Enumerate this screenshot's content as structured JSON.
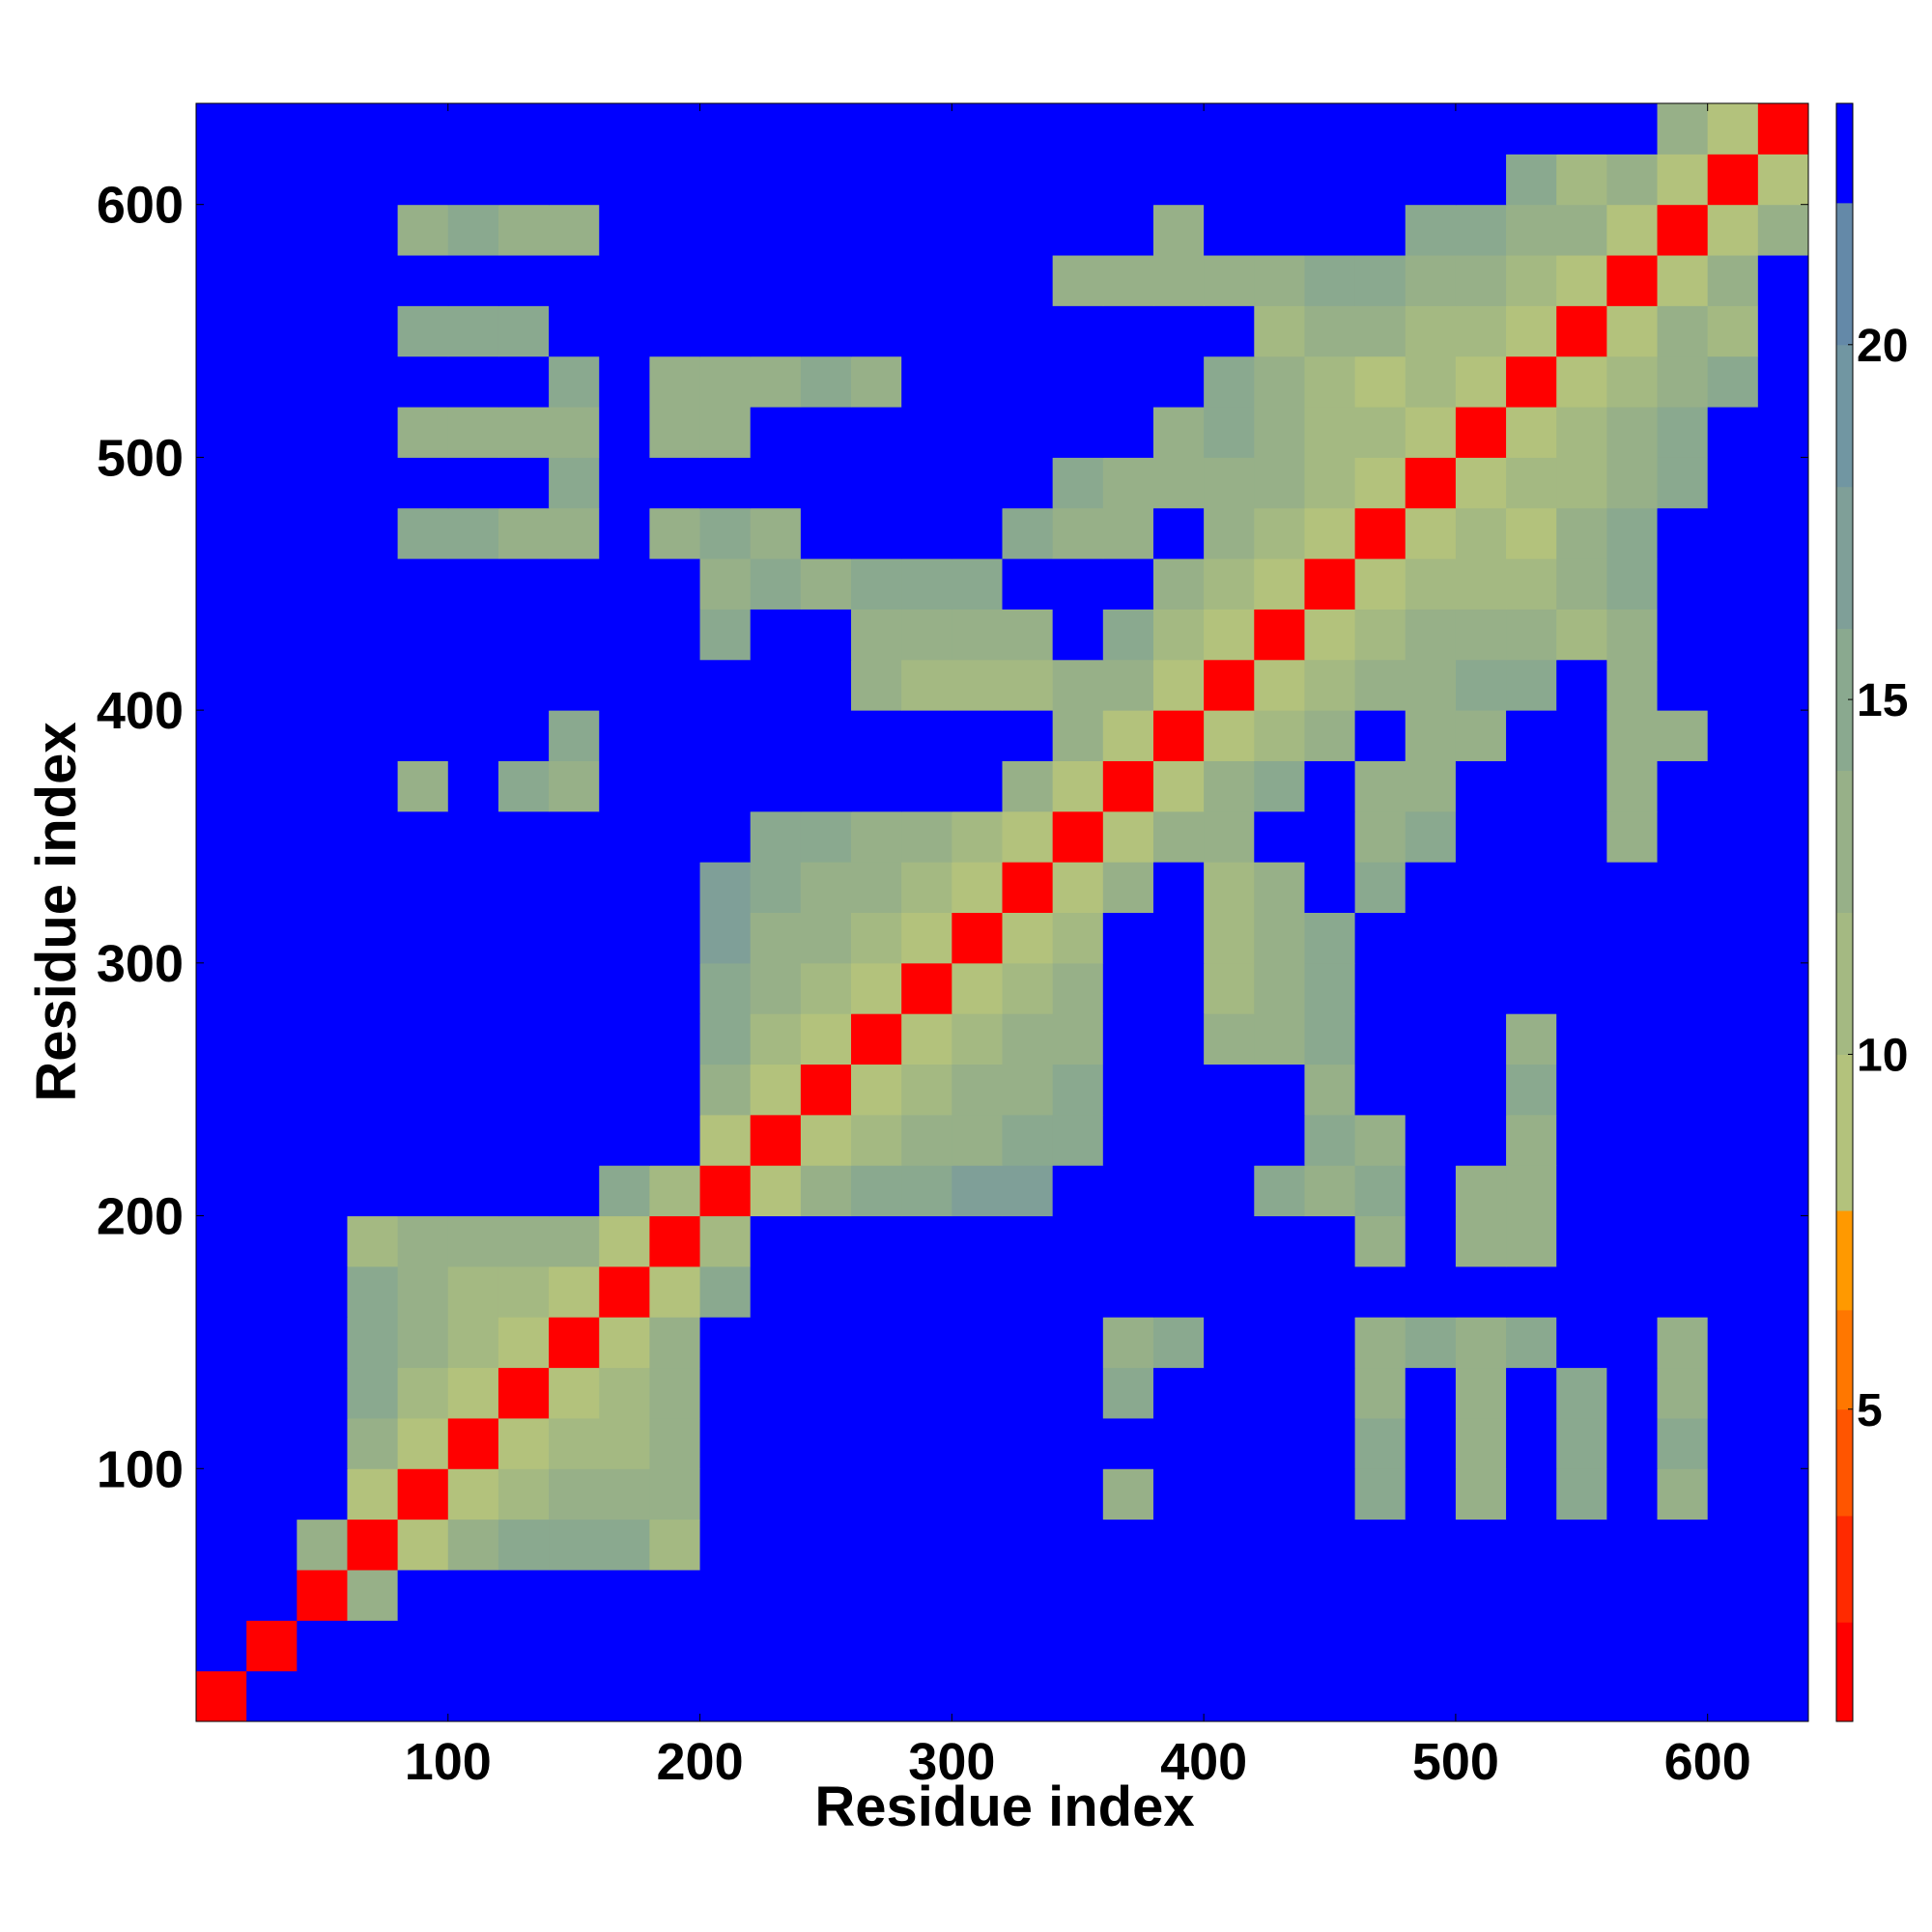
{
  "chart_data": {
    "type": "heatmap",
    "xlabel": "Residue index",
    "ylabel": "Residue index",
    "bins": [
      0,
      20,
      40,
      60,
      80,
      100,
      120,
      140,
      160,
      180,
      200,
      220,
      240,
      260,
      280,
      300,
      320,
      340,
      360,
      380,
      400,
      420,
      440,
      460,
      480,
      500,
      520,
      540,
      560,
      580,
      600,
      620,
      640
    ],
    "xlim": [
      0,
      640
    ],
    "ylim": [
      0,
      640
    ],
    "xticks": [
      100,
      200,
      300,
      400,
      500,
      600
    ],
    "yticks": [
      100,
      200,
      300,
      400,
      500,
      600
    ],
    "z": [
      [
        1,
        23,
        23,
        23,
        23,
        23,
        23,
        23,
        23,
        23,
        23,
        23,
        23,
        23,
        23,
        23,
        23,
        23,
        23,
        23,
        23,
        23,
        23,
        23,
        23,
        23,
        23,
        23,
        23,
        23,
        23,
        23
      ],
      [
        23,
        1,
        23,
        23,
        23,
        23,
        23,
        23,
        23,
        23,
        23,
        23,
        23,
        23,
        23,
        23,
        23,
        23,
        23,
        23,
        23,
        23,
        23,
        23,
        23,
        23,
        23,
        23,
        23,
        23,
        23,
        23
      ],
      [
        23,
        23,
        1,
        14,
        23,
        23,
        23,
        23,
        23,
        23,
        23,
        23,
        23,
        23,
        23,
        23,
        23,
        23,
        23,
        23,
        23,
        23,
        23,
        23,
        23,
        23,
        23,
        23,
        23,
        23,
        23,
        23
      ],
      [
        23,
        23,
        14,
        1,
        10,
        14,
        15,
        15,
        16,
        12,
        23,
        23,
        23,
        23,
        23,
        23,
        23,
        23,
        23,
        23,
        23,
        23,
        23,
        23,
        23,
        23,
        23,
        23,
        23,
        23,
        23,
        23
      ],
      [
        23,
        23,
        23,
        10,
        1,
        10,
        12,
        13,
        14,
        13,
        23,
        23,
        23,
        23,
        23,
        23,
        23,
        23,
        14,
        23,
        23,
        23,
        23,
        15,
        23,
        14,
        23,
        16,
        23,
        14,
        23,
        23
      ],
      [
        23,
        23,
        23,
        14,
        10,
        1,
        8,
        12,
        12,
        13,
        23,
        23,
        23,
        23,
        23,
        23,
        23,
        23,
        23,
        23,
        23,
        23,
        23,
        16,
        23,
        14,
        23,
        16,
        23,
        16,
        23,
        23
      ],
      [
        23,
        23,
        23,
        15,
        12,
        8,
        1,
        9,
        12,
        14,
        23,
        23,
        23,
        23,
        23,
        23,
        23,
        23,
        16,
        23,
        23,
        23,
        23,
        13,
        23,
        13,
        23,
        15,
        23,
        14,
        23,
        23
      ],
      [
        23,
        23,
        23,
        15,
        13,
        12,
        9,
        1,
        8,
        13,
        23,
        23,
        23,
        23,
        23,
        23,
        23,
        23,
        13,
        16,
        23,
        23,
        23,
        14,
        15,
        14,
        16,
        23,
        23,
        13,
        23,
        23
      ],
      [
        23,
        23,
        23,
        16,
        14,
        12,
        12,
        8,
        1,
        10,
        16,
        23,
        23,
        23,
        23,
        23,
        23,
        23,
        23,
        23,
        23,
        23,
        23,
        23,
        23,
        23,
        23,
        23,
        23,
        23,
        23,
        23
      ],
      [
        23,
        23,
        23,
        12,
        13,
        13,
        14,
        13,
        10,
        1,
        12,
        23,
        23,
        23,
        23,
        23,
        23,
        23,
        23,
        23,
        23,
        23,
        23,
        13,
        23,
        14,
        13,
        23,
        23,
        23,
        23,
        23
      ],
      [
        23,
        23,
        23,
        23,
        23,
        23,
        23,
        23,
        16,
        12,
        1,
        10,
        13,
        15,
        15,
        17,
        18,
        23,
        23,
        23,
        23,
        15,
        14,
        16,
        23,
        14,
        13,
        23,
        23,
        23,
        23,
        23
      ],
      [
        23,
        23,
        23,
        23,
        23,
        23,
        23,
        23,
        23,
        23,
        10,
        1,
        9,
        12,
        13,
        14,
        15,
        16,
        23,
        23,
        23,
        23,
        15,
        14,
        23,
        23,
        14,
        23,
        23,
        23,
        23,
        23
      ],
      [
        23,
        23,
        23,
        23,
        23,
        23,
        23,
        23,
        23,
        23,
        13,
        9,
        1,
        9,
        12,
        13,
        13,
        15,
        23,
        23,
        23,
        23,
        13,
        23,
        23,
        23,
        15,
        23,
        23,
        23,
        23,
        23
      ],
      [
        23,
        23,
        23,
        23,
        23,
        23,
        23,
        23,
        23,
        23,
        15,
        12,
        9,
        1,
        8,
        12,
        13,
        14,
        23,
        23,
        13,
        13,
        15,
        23,
        23,
        23,
        14,
        23,
        23,
        23,
        23,
        23
      ],
      [
        23,
        23,
        23,
        23,
        23,
        23,
        23,
        23,
        23,
        23,
        15,
        13,
        12,
        8,
        1,
        9,
        12,
        13,
        23,
        23,
        12,
        13,
        16,
        23,
        23,
        23,
        23,
        23,
        23,
        23,
        23,
        23
      ],
      [
        23,
        23,
        23,
        23,
        23,
        23,
        23,
        23,
        23,
        23,
        17,
        14,
        13,
        12,
        9,
        1,
        9,
        12,
        23,
        23,
        11,
        14,
        16,
        23,
        23,
        23,
        23,
        23,
        23,
        23,
        23,
        23
      ],
      [
        23,
        23,
        23,
        23,
        23,
        23,
        23,
        23,
        23,
        23,
        18,
        15,
        13,
        13,
        12,
        9,
        1,
        9,
        13,
        23,
        12,
        14,
        23,
        16,
        23,
        23,
        23,
        23,
        23,
        23,
        23,
        23
      ],
      [
        23,
        23,
        23,
        23,
        23,
        23,
        23,
        23,
        23,
        23,
        23,
        16,
        15,
        14,
        13,
        12,
        9,
        1,
        9,
        14,
        13,
        23,
        23,
        14,
        15,
        23,
        23,
        23,
        14,
        23,
        23,
        23
      ],
      [
        23,
        23,
        23,
        23,
        14,
        23,
        16,
        13,
        23,
        23,
        23,
        23,
        23,
        23,
        23,
        23,
        13,
        9,
        1,
        9,
        13,
        15,
        23,
        13,
        14,
        23,
        23,
        23,
        13,
        23,
        23,
        23
      ],
      [
        23,
        23,
        23,
        23,
        23,
        23,
        23,
        16,
        23,
        23,
        23,
        23,
        23,
        23,
        23,
        23,
        23,
        14,
        9,
        1,
        9,
        12,
        14,
        23,
        14,
        13,
        23,
        23,
        13,
        14,
        23,
        23
      ],
      [
        23,
        23,
        23,
        23,
        23,
        23,
        23,
        23,
        23,
        23,
        23,
        23,
        23,
        13,
        12,
        11,
        12,
        13,
        13,
        9,
        1,
        9,
        12,
        13,
        14,
        15,
        15,
        23,
        14,
        23,
        23,
        23
      ],
      [
        23,
        23,
        23,
        23,
        23,
        23,
        23,
        23,
        23,
        23,
        15,
        23,
        23,
        13,
        13,
        14,
        14,
        23,
        15,
        12,
        9,
        1,
        9,
        12,
        13,
        13,
        14,
        12,
        13,
        23,
        23,
        23
      ],
      [
        23,
        23,
        23,
        23,
        23,
        23,
        23,
        23,
        23,
        23,
        14,
        15,
        13,
        15,
        16,
        16,
        23,
        23,
        23,
        14,
        12,
        9,
        1,
        9,
        12,
        12,
        11,
        13,
        15,
        23,
        23,
        23
      ],
      [
        23,
        23,
        23,
        23,
        15,
        16,
        13,
        14,
        23,
        13,
        16,
        14,
        23,
        23,
        23,
        23,
        16,
        14,
        13,
        23,
        13,
        12,
        9,
        1,
        9,
        11,
        10,
        13,
        16,
        23,
        23,
        23
      ],
      [
        23,
        23,
        23,
        23,
        23,
        23,
        23,
        15,
        23,
        23,
        23,
        23,
        23,
        23,
        23,
        23,
        23,
        15,
        14,
        14,
        14,
        13,
        12,
        9,
        1,
        9,
        11,
        12,
        13,
        15,
        23,
        23
      ],
      [
        23,
        23,
        23,
        23,
        14,
        14,
        13,
        14,
        23,
        14,
        14,
        23,
        23,
        23,
        23,
        23,
        23,
        23,
        23,
        13,
        15,
        13,
        12,
        11,
        9,
        1,
        9,
        11,
        13,
        15,
        23,
        23
      ],
      [
        23,
        23,
        23,
        23,
        23,
        23,
        23,
        16,
        23,
        13,
        13,
        14,
        15,
        14,
        23,
        23,
        23,
        23,
        23,
        23,
        15,
        14,
        11,
        10,
        11,
        9,
        1,
        9,
        12,
        14,
        15,
        23
      ],
      [
        23,
        23,
        23,
        23,
        16,
        16,
        15,
        23,
        23,
        23,
        23,
        23,
        23,
        23,
        23,
        23,
        23,
        23,
        23,
        23,
        23,
        12,
        13,
        13,
        12,
        11,
        9,
        1,
        10,
        13,
        12,
        23
      ],
      [
        23,
        23,
        23,
        23,
        23,
        23,
        23,
        23,
        23,
        23,
        23,
        23,
        23,
        23,
        23,
        23,
        23,
        14,
        13,
        13,
        14,
        13,
        15,
        16,
        13,
        13,
        12,
        10,
        1,
        10,
        14,
        23
      ],
      [
        23,
        23,
        23,
        23,
        14,
        16,
        14,
        13,
        23,
        23,
        23,
        23,
        23,
        23,
        23,
        23,
        23,
        23,
        23,
        14,
        23,
        23,
        23,
        23,
        15,
        15,
        14,
        13,
        10,
        1,
        10,
        14
      ],
      [
        23,
        23,
        23,
        23,
        23,
        23,
        23,
        23,
        23,
        23,
        23,
        23,
        23,
        23,
        23,
        23,
        23,
        23,
        23,
        23,
        23,
        23,
        23,
        23,
        23,
        23,
        15,
        12,
        14,
        10,
        1,
        9
      ],
      [
        23,
        23,
        23,
        23,
        23,
        23,
        23,
        23,
        23,
        23,
        23,
        23,
        23,
        23,
        23,
        23,
        23,
        23,
        23,
        23,
        23,
        23,
        23,
        23,
        23,
        23,
        23,
        23,
        23,
        14,
        9,
        1
      ]
    ],
    "colorbar": {
      "clim": [
        0.6,
        23.4
      ],
      "ticks": [
        5,
        10,
        15,
        20
      ],
      "levels": [
        0.6,
        2,
        3.5,
        5,
        6.4,
        7.8,
        10,
        12,
        14,
        16,
        18,
        20,
        22,
        23.4
      ],
      "colors": [
        "#ff0000",
        "#ff2a00",
        "#ff5500",
        "#ff7700",
        "#ff9900",
        "#b3c27c",
        "#a4b982",
        "#97b088",
        "#8aa98f",
        "#7f9f98",
        "#7196a2",
        "#6489a8",
        "#0000ff"
      ]
    }
  }
}
